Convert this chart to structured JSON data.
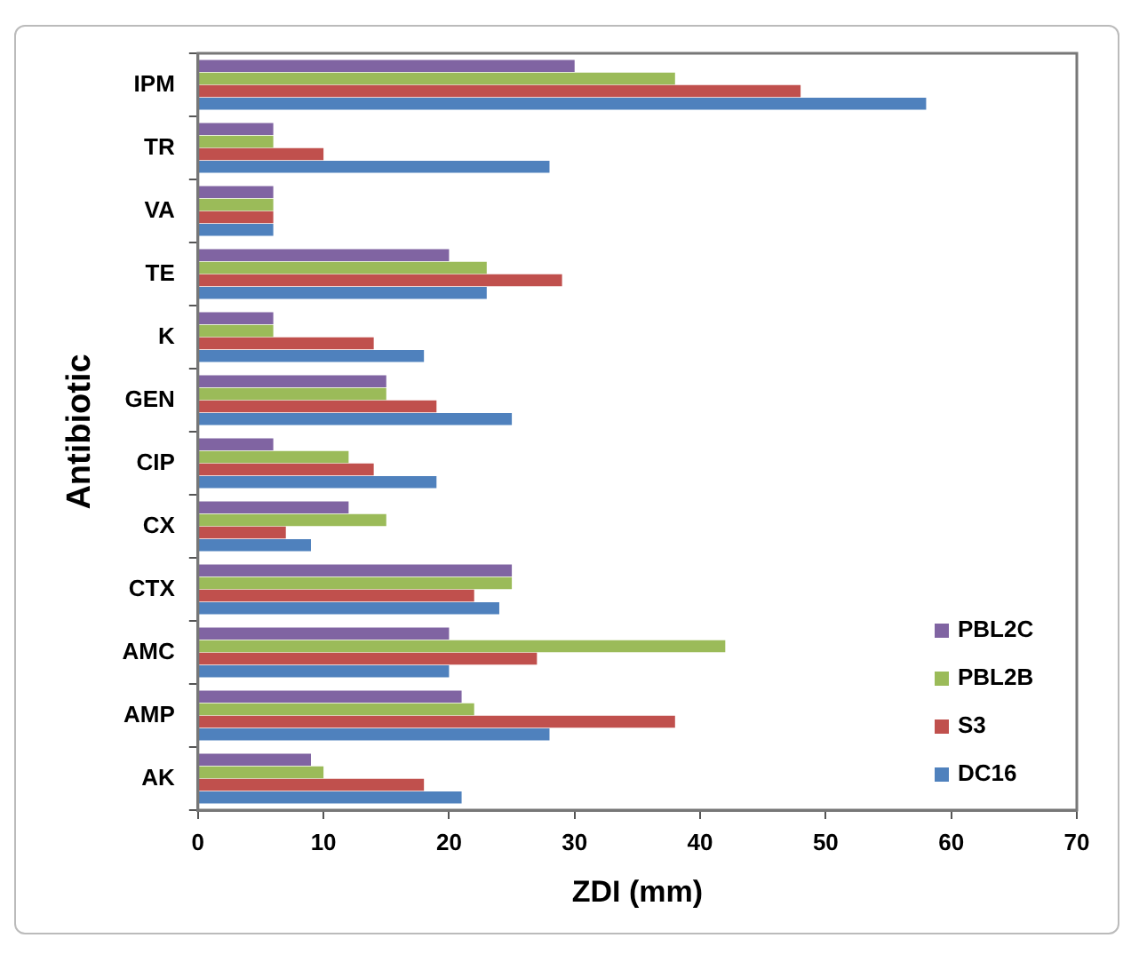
{
  "chart_data": {
    "type": "bar",
    "orientation": "horizontal",
    "xlabel": "ZDI (mm)",
    "ylabel": "Antibiotic",
    "categories": [
      "IPM",
      "TR",
      "VA",
      "TE",
      "K",
      "GEN",
      "CIP",
      "CX",
      "CTX",
      "AMC",
      "AMP",
      "AK"
    ],
    "series": [
      {
        "name": "PBL2C",
        "color": "#8064a2",
        "values": [
          30,
          6,
          6,
          20,
          6,
          15,
          6,
          12,
          25,
          20,
          21,
          9
        ]
      },
      {
        "name": "PBL2B",
        "color": "#9bbb59",
        "values": [
          38,
          6,
          6,
          23,
          6,
          15,
          12,
          15,
          25,
          42,
          22,
          10
        ]
      },
      {
        "name": "S3",
        "color": "#c0504d",
        "values": [
          48,
          10,
          6,
          29,
          14,
          19,
          14,
          7,
          22,
          27,
          38,
          18
        ]
      },
      {
        "name": "DC16",
        "color": "#4f81bd",
        "values": [
          58,
          28,
          6,
          23,
          18,
          25,
          19,
          9,
          24,
          20,
          28,
          21
        ]
      }
    ],
    "xlim": [
      0,
      70
    ],
    "xticks": [
      0,
      10,
      20,
      30,
      40,
      50,
      60,
      70
    ],
    "legend": "bottom right"
  }
}
